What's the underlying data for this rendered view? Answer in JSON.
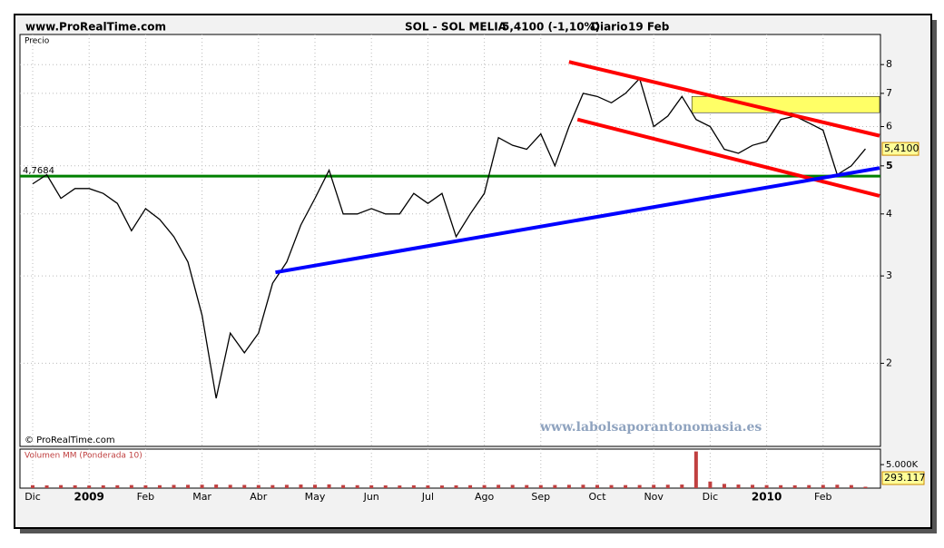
{
  "header": {
    "site": "www.ProRealTime.com",
    "instrument": "SOL - SOL MELIA",
    "quote": "5,4100 (-1,10%)",
    "period": "Diario",
    "date": "19 Feb"
  },
  "chart_data": {
    "type": "line",
    "panel_label": "Precio",
    "copyright": "© ProRealTime.com",
    "watermark": "www.labolsaporantonomasia.es",
    "log_scale": true,
    "grid": true,
    "color": "#000000",
    "categories": [
      "Dic",
      null,
      null,
      null,
      "2009",
      null,
      null,
      null,
      "Feb",
      null,
      null,
      null,
      "Mar",
      null,
      null,
      null,
      "Abr",
      null,
      null,
      null,
      "May",
      null,
      null,
      null,
      "Jun",
      null,
      null,
      null,
      "Jul",
      null,
      null,
      null,
      "Ago",
      null,
      null,
      null,
      "Sep",
      null,
      null,
      null,
      "Oct",
      null,
      null,
      null,
      "Nov",
      null,
      null,
      null,
      "Dic",
      null,
      null,
      null,
      "2010",
      null,
      null,
      null,
      "Feb",
      null,
      null,
      null
    ],
    "values": [
      4.6,
      4.8,
      4.3,
      4.5,
      4.5,
      4.4,
      4.2,
      3.7,
      4.1,
      3.9,
      3.6,
      3.2,
      2.5,
      1.7,
      2.3,
      2.1,
      2.3,
      2.9,
      3.2,
      3.8,
      4.3,
      4.9,
      4.0,
      4.0,
      4.1,
      4.0,
      4.0,
      4.4,
      4.2,
      4.4,
      3.6,
      4.0,
      4.4,
      5.7,
      5.5,
      5.4,
      5.8,
      5.0,
      6.0,
      7.0,
      6.9,
      6.7,
      7.0,
      7.5,
      6.0,
      6.3,
      6.9,
      6.2,
      6.0,
      5.4,
      5.3,
      5.5,
      5.6,
      6.2,
      6.3,
      6.1,
      5.9,
      4.8,
      5.0,
      5.41
    ],
    "last_price_label": "5,4100",
    "ylim": [
      1.36,
      9.2
    ],
    "yticks": [
      2,
      3,
      4,
      5,
      6,
      7,
      8
    ],
    "hline": {
      "value": 4.7684,
      "label": "4,7684",
      "color": "#008000"
    },
    "trend_lines": [
      {
        "x": [
          38,
          60
        ],
        "y": [
          8.1,
          5.75
        ],
        "color": "#ff0000"
      },
      {
        "x": [
          38.6,
          60
        ],
        "y": [
          6.2,
          4.35
        ],
        "color": "#ff0000"
      },
      {
        "x": [
          17.2,
          60
        ],
        "y": [
          3.05,
          4.95
        ],
        "color": "#0000ff"
      }
    ],
    "zone": {
      "x": [
        46.7,
        60
      ],
      "y": [
        6.4,
        6.9
      ],
      "color": "#ffff66"
    },
    "volume": {
      "label": "Volumen MM (Ponderada 10)",
      "color": "#c04040",
      "values": [
        620,
        580,
        640,
        600,
        560,
        590,
        610,
        650,
        600,
        620,
        680,
        700,
        720,
        760,
        700,
        680,
        650,
        640,
        700,
        760,
        720,
        800,
        650,
        620,
        600,
        580,
        560,
        600,
        580,
        560,
        590,
        620,
        640,
        700,
        680,
        650,
        640,
        660,
        700,
        720,
        680,
        650,
        640,
        660,
        700,
        720,
        760,
        7800,
        1400,
        900,
        760,
        700,
        640,
        620,
        600,
        640,
        680,
        720,
        650,
        293.117
      ],
      "ylim": [
        0,
        8300
      ],
      "yticks": [
        {
          "value": 5000,
          "label": "5.000K"
        }
      ]
    }
  }
}
